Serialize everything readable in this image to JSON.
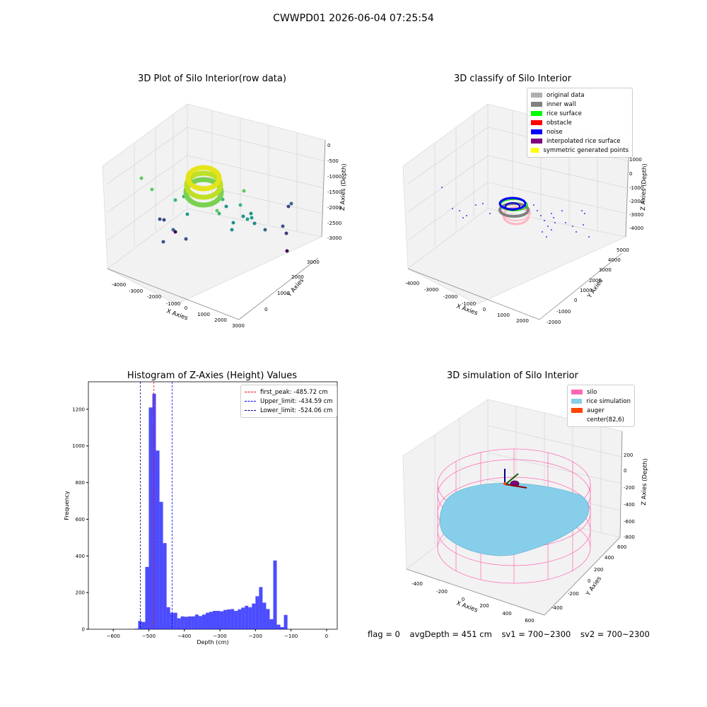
{
  "suptitle": "CWWPD01 2026-06-04 07:25:54",
  "panels": {
    "p1": {
      "title": "3D Plot of Silo Interior(row data)",
      "xlabel": "X Axies",
      "ylabel": "Y Axies",
      "zlabel": "Z Axies (Depth)",
      "xticks": [
        "-4000",
        "-3000",
        "-2000",
        "-1000",
        "0",
        "1000",
        "2000",
        "3000"
      ],
      "yticks": [
        "0",
        "1000",
        "2000",
        "3000"
      ],
      "zticks": [
        "0",
        "-500",
        "-1000",
        "-1500",
        "-2000",
        "-2500",
        "-3000"
      ]
    },
    "p2": {
      "title": "3D classify of Silo Interior",
      "xlabel": "X Axies",
      "ylabel": "Y Axies",
      "zlabel": "Z Axies (Depth)",
      "xticks": [
        "-4000",
        "-3000",
        "-2000",
        "-1000",
        "0",
        "1000",
        "2000"
      ],
      "yticks": [
        "-2000",
        "-1000",
        "0",
        "1000",
        "2000",
        "3000",
        "4000",
        "5000"
      ],
      "zticks": [
        "1000",
        "0",
        "-1000",
        "-2000",
        "-3000",
        "-4000"
      ],
      "legend": [
        {
          "label": "original data",
          "color": "#b0b0b0"
        },
        {
          "label": "inner wall",
          "color": "#808080"
        },
        {
          "label": "rice surface",
          "color": "#00ff00"
        },
        {
          "label": "obstacle",
          "color": "#ff0000"
        },
        {
          "label": "noise",
          "color": "#0000ff"
        },
        {
          "label": "interpolated rice surface",
          "color": "#800080"
        },
        {
          "label": "symmetric generated points",
          "color": "#ffff00"
        }
      ]
    },
    "p4": {
      "title": "3D simulation of Silo Interior",
      "xlabel": "X Axies",
      "ylabel": "Y Axies",
      "zlabel": "Z Axies (Depth)",
      "xticks": [
        "-400",
        "-200",
        "0",
        "200",
        "400",
        "600"
      ],
      "yticks": [
        "-400",
        "-200",
        "0",
        "200",
        "400",
        "600"
      ],
      "zticks": [
        "200",
        "0",
        "-200",
        "-400",
        "-600",
        "-800"
      ],
      "legend": [
        {
          "label": "silo",
          "color": "#ff69b4"
        },
        {
          "label": "rice simulation",
          "color": "#87ceeb"
        },
        {
          "label": "auger",
          "color": "#ff4500"
        },
        {
          "label": "center(82,6)",
          "color": ""
        }
      ]
    }
  },
  "chart_data": {
    "type": "bar",
    "title": "Histogram of Z-Axies (Height) Values",
    "xlabel": "Depth (cm)",
    "ylabel": "Frequency",
    "xlim": [
      -670,
      30
    ],
    "ylim": [
      0,
      1350
    ],
    "xticks": [
      -600,
      -500,
      -400,
      -300,
      -200,
      -100,
      0
    ],
    "yticks": [
      0,
      200,
      400,
      600,
      800,
      1000,
      1200
    ],
    "bin_width": 10,
    "bin_starts": [
      -550,
      -540,
      -530,
      -520,
      -510,
      -500,
      -490,
      -480,
      -470,
      -460,
      -450,
      -440,
      -430,
      -420,
      -410,
      -400,
      -390,
      -380,
      -370,
      -360,
      -350,
      -340,
      -330,
      -320,
      -310,
      -300,
      -290,
      -280,
      -270,
      -260,
      -250,
      -240,
      -230,
      -220,
      -210,
      -200,
      -190,
      -180,
      -170,
      -160,
      -150,
      -140,
      -130,
      -120,
      -110,
      -100,
      -90,
      -80,
      -70,
      -60,
      -50,
      -40,
      -30,
      -20,
      -10,
      0
    ],
    "values": [
      0,
      3,
      45,
      40,
      340,
      1210,
      1285,
      975,
      695,
      470,
      120,
      90,
      90,
      60,
      70,
      68,
      70,
      70,
      80,
      72,
      80,
      90,
      95,
      100,
      100,
      98,
      105,
      108,
      110,
      100,
      108,
      118,
      128,
      120,
      140,
      180,
      230,
      145,
      110,
      55,
      375,
      25,
      12,
      78,
      0,
      0,
      0,
      0,
      0,
      0,
      0,
      0,
      0,
      0,
      0,
      0
    ],
    "series": [
      {
        "name": "",
        "color": "#0000ff"
      }
    ],
    "reference_lines": [
      {
        "label": "first_peak: -485.72 cm",
        "value": -485.72,
        "color": "#ff0000"
      },
      {
        "label": "Upper_limit: -434.59 cm",
        "value": -434.59,
        "color": "#0000ff"
      },
      {
        "label": "Lower_limit: -524.06 cm",
        "value": -524.06,
        "color": "#00008b"
      }
    ],
    "legend_position": "top-right"
  },
  "footer": {
    "flag": "flag = 0",
    "avg": "avgDepth = 451 cm",
    "sv1": "sv1 = 700~2300",
    "sv2": "sv2 = 700~2300"
  }
}
